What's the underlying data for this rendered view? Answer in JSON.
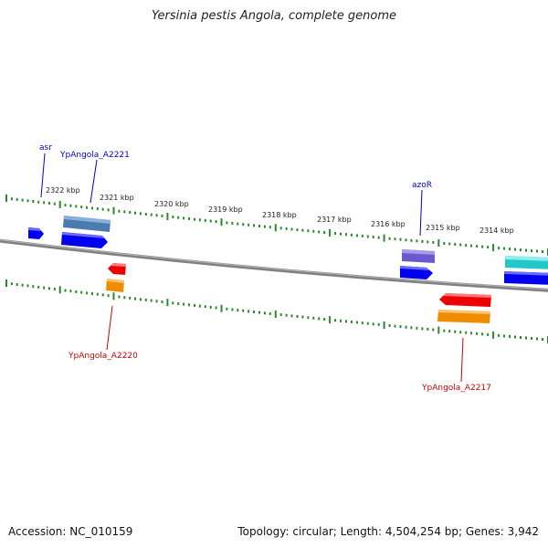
{
  "title": "Yersinia pestis Angola, complete genome",
  "footer": {
    "accession": "Accession: NC_010159",
    "topology": "Topology: circular; Length: 4,504,254 bp; Genes: 3,942"
  },
  "scale_labels": [
    "2322 kbp",
    "2321 kbp",
    "2320 kbp",
    "2319 kbp",
    "2318 kbp",
    "2317 kbp",
    "2316 kbp",
    "2315 kbp",
    "2314 kbp"
  ],
  "gene_labels": {
    "asr": "asr",
    "ypangola_a2221": "YpAngola_A2221",
    "azor": "azoR",
    "ypangola_a2220": "YpAngola_A2220",
    "ypangola_a2217": "YpAngola_A2217"
  },
  "colors": {
    "backbone": "#808080",
    "ticks": "#2a8a2a",
    "gene_blue": "#0000ee",
    "gene_steel": "#4a7ab0",
    "gene_slate": "#6a5acd",
    "gene_cyan": "#20c8c8",
    "gene_red": "#ee0000",
    "gene_orange": "#f08c00",
    "label_blue": "#0000cc",
    "label_red": "#cc0000"
  }
}
